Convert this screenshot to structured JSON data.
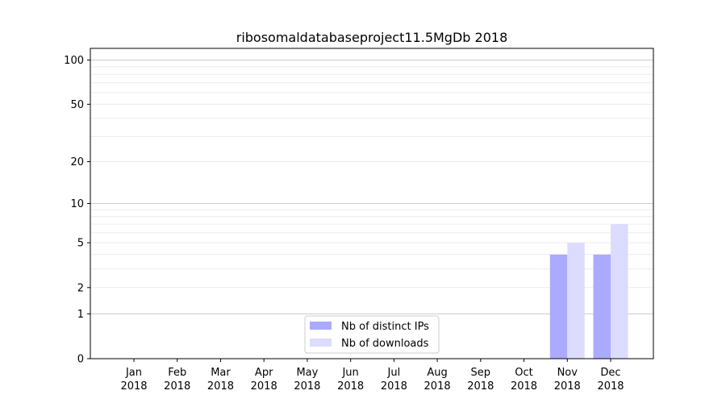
{
  "chart_data": {
    "type": "bar",
    "title": "ribosomaldatabaseproject11.5MgDb 2018",
    "xlabel": "",
    "ylabel": "",
    "categories": [
      [
        "Jan",
        "2018"
      ],
      [
        "Feb",
        "2018"
      ],
      [
        "Mar",
        "2018"
      ],
      [
        "Apr",
        "2018"
      ],
      [
        "May",
        "2018"
      ],
      [
        "Jun",
        "2018"
      ],
      [
        "Jul",
        "2018"
      ],
      [
        "Aug",
        "2018"
      ],
      [
        "Sep",
        "2018"
      ],
      [
        "Oct",
        "2018"
      ],
      [
        "Nov",
        "2018"
      ],
      [
        "Dec",
        "2018"
      ]
    ],
    "series": [
      {
        "name": "Nb of distinct IPs",
        "color": "#aaaaff",
        "values": [
          0,
          0,
          0,
          0,
          0,
          0,
          0,
          0,
          0,
          0,
          4,
          4
        ]
      },
      {
        "name": "Nb of downloads",
        "color": "#dcdcff",
        "values": [
          0,
          0,
          0,
          0,
          0,
          0,
          0,
          0,
          0,
          0,
          5,
          7
        ]
      }
    ],
    "y_scale": "log(1+y)",
    "yticks": [
      0,
      1,
      2,
      5,
      10,
      20,
      50,
      100
    ],
    "ylim": [
      0,
      120
    ],
    "grid": true,
    "legend_position": "lower-center"
  }
}
